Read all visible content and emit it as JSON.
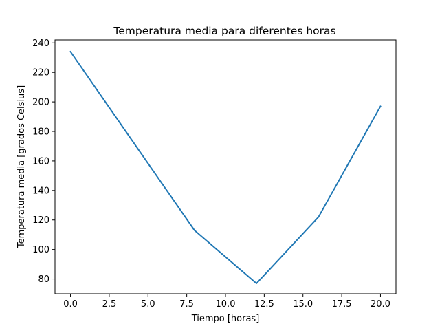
{
  "chart_data": {
    "type": "line",
    "title": "Temperatura media para diferentes horas",
    "xlabel": "Tiempo [horas]",
    "ylabel": "Temperatura media [grados Celsius]",
    "xlim": [
      -1,
      21
    ],
    "ylim": [
      70,
      242
    ],
    "xticks": [
      0,
      2.5,
      5,
      7.5,
      10,
      12.5,
      15,
      17.5,
      20
    ],
    "xtick_labels": [
      "0.0",
      "2.5",
      "5.0",
      "7.5",
      "10.0",
      "12.5",
      "15.0",
      "17.5",
      "20.0"
    ],
    "yticks": [
      80,
      100,
      120,
      140,
      160,
      180,
      200,
      220,
      240
    ],
    "ytick_labels": [
      "80",
      "100",
      "120",
      "140",
      "160",
      "180",
      "200",
      "220",
      "240"
    ],
    "grid": false,
    "legend": false,
    "series": [
      {
        "color": "#1f77b4",
        "x": [
          0,
          8,
          12,
          16,
          20
        ],
        "y": [
          234,
          113,
          77,
          122,
          197
        ]
      }
    ]
  }
}
